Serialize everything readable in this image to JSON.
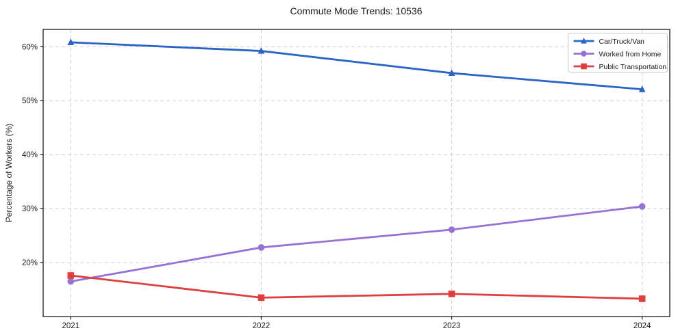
{
  "chart_data": {
    "type": "line",
    "title": "Commute Mode Trends: 10536",
    "xlabel": "",
    "ylabel": "Percentage of Workers (%)",
    "x": [
      2021,
      2022,
      2023,
      2024
    ],
    "x_tick_labels": [
      "2021",
      "2022",
      "2023",
      "2024"
    ],
    "y_ticks": [
      20,
      30,
      40,
      50,
      60
    ],
    "y_tick_labels": [
      "20%",
      "30%",
      "40%",
      "50%",
      "60%"
    ],
    "xlim": [
      2020.855,
      2024.145
    ],
    "ylim": [
      10.0,
      63.2
    ],
    "grid": true,
    "grid_style": "dashed",
    "legend_position": "upper right",
    "series": [
      {
        "name": "Car/Truck/Van",
        "color": "#2a64c5",
        "marker": "triangle",
        "values": [
          60.8,
          59.2,
          55.1,
          52.1
        ]
      },
      {
        "name": "Worked from Home",
        "color": "#9572d4",
        "marker": "circle",
        "values": [
          16.5,
          22.8,
          26.1,
          30.4
        ]
      },
      {
        "name": "Public Transportation",
        "color": "#de3e3c",
        "marker": "square",
        "values": [
          17.6,
          13.5,
          14.2,
          13.3
        ]
      }
    ]
  },
  "colors": {
    "axis": "#1a1a1a",
    "grid": "#cdcdcd",
    "tick_text": "#262626",
    "legend_border": "#c9c9c9",
    "background": "#ffffff"
  }
}
